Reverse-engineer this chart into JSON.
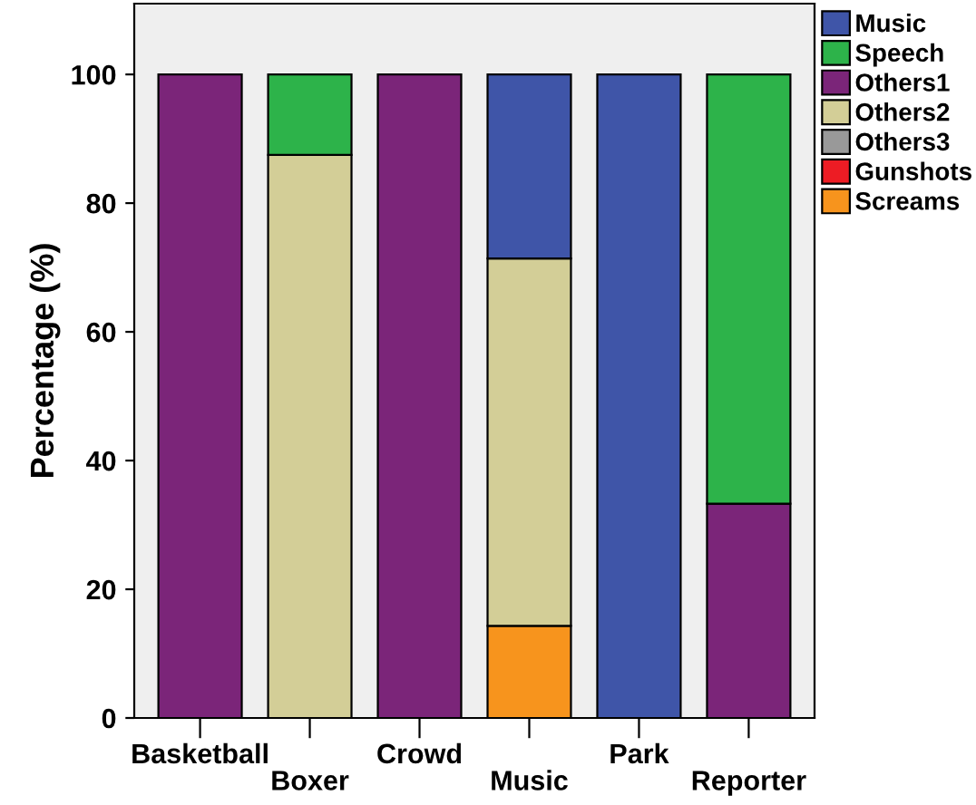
{
  "chart_data": {
    "type": "bar",
    "stacked": true,
    "ylabel": "Percentage (%)",
    "categories": [
      "Basketball",
      "Boxer",
      "Crowd",
      "Music",
      "Park",
      "Reporter"
    ],
    "series": [
      {
        "name": "Screams",
        "color": "#f7941d",
        "values": [
          null,
          null,
          null,
          14.3,
          null,
          null
        ]
      },
      {
        "name": "Gunshots",
        "color": "#ed1c24",
        "values": [
          null,
          null,
          null,
          null,
          null,
          null
        ]
      },
      {
        "name": "Others3",
        "color": "#999999",
        "values": [
          null,
          null,
          null,
          null,
          null,
          null
        ]
      },
      {
        "name": "Others2",
        "color": "#d3ce97",
        "values": [
          null,
          87.5,
          null,
          57.1,
          null,
          null
        ]
      },
      {
        "name": "Others1",
        "color": "#7b2579",
        "values": [
          100,
          null,
          100,
          null,
          null,
          33.3
        ]
      },
      {
        "name": "Speech",
        "color": "#2db34a",
        "values": [
          null,
          12.5,
          null,
          null,
          null,
          66.7
        ]
      },
      {
        "name": "Music",
        "color": "#3f55a8",
        "values": [
          null,
          null,
          null,
          28.6,
          100,
          null
        ]
      }
    ],
    "ylim": [
      0,
      111
    ],
    "yticks": [
      0,
      20,
      40,
      60,
      80,
      100
    ],
    "grid": false,
    "legend": "top right"
  }
}
